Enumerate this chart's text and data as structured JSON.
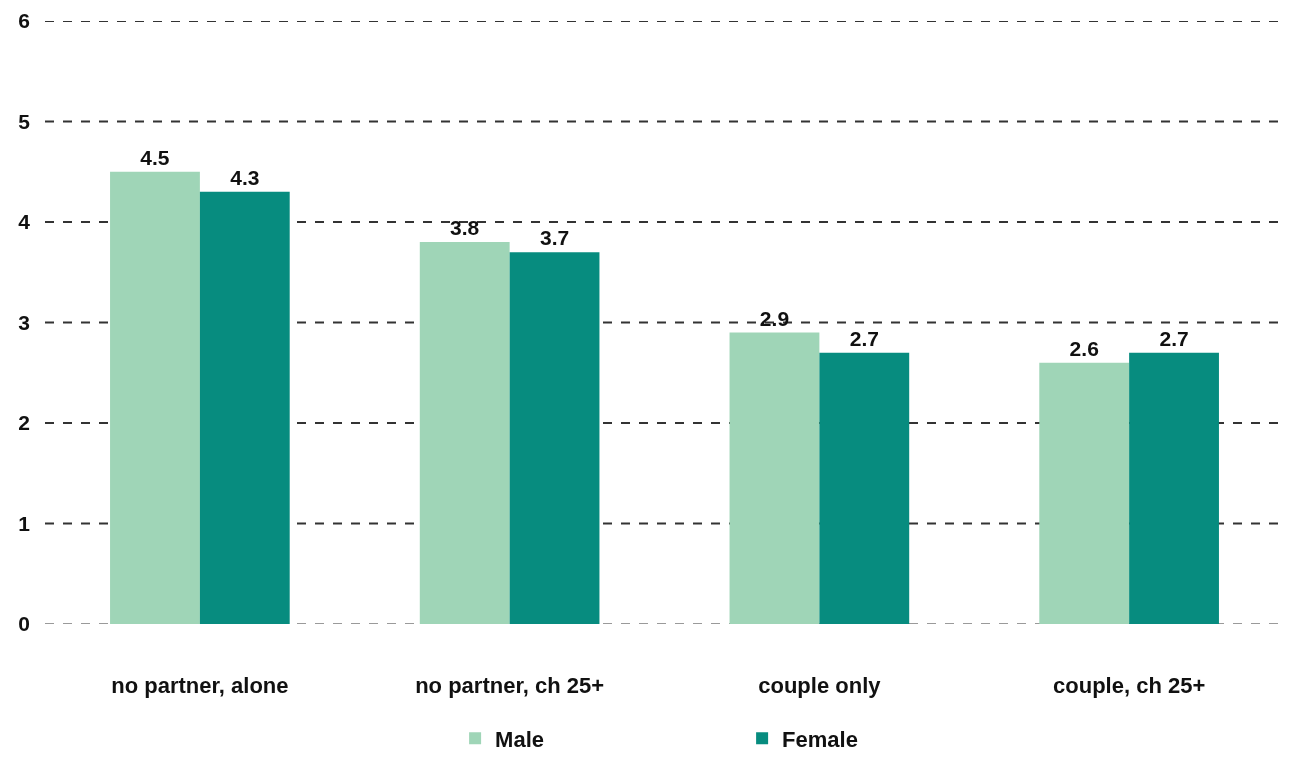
{
  "chart_data": {
    "type": "bar",
    "categories": [
      "no partner, alone",
      "no partner, ch 25+",
      "couple only",
      "couple, ch 25+"
    ],
    "series": [
      {
        "name": "Male",
        "color": "#9fd5b7",
        "values": [
          4.5,
          3.8,
          2.9,
          2.6
        ]
      },
      {
        "name": "Female",
        "color": "#078c7f",
        "values": [
          4.3,
          3.7,
          2.7,
          2.7
        ]
      }
    ],
    "ylim": [
      0,
      6
    ],
    "yticks": [
      0,
      1,
      2,
      3,
      4,
      5,
      6
    ],
    "grid": "y",
    "legend": "bottom",
    "data_labels": true
  }
}
